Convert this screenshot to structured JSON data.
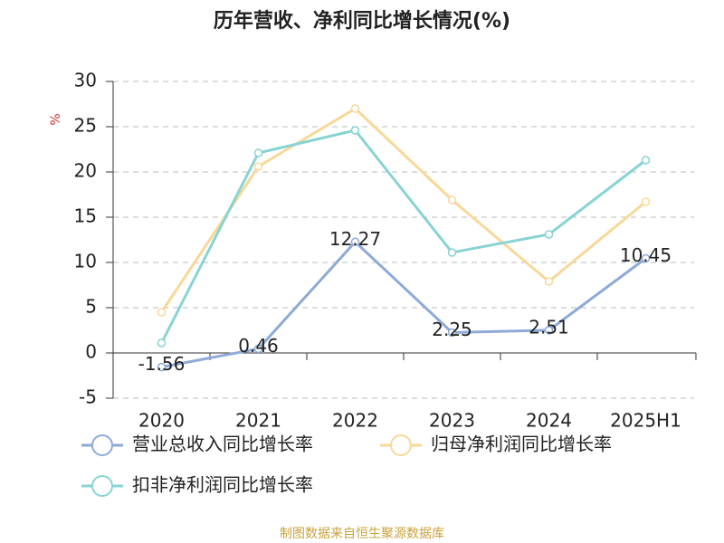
{
  "chart_data": {
    "type": "line",
    "title": "历年营收、净利同比增长情况(%)",
    "y_label": "%",
    "source": "制图数据来自恒生聚源数据库",
    "categories": [
      "2020",
      "2021",
      "2022",
      "2023",
      "2024",
      "2025H1"
    ],
    "series": [
      {
        "name": "营业总收入同比增长率",
        "color": "#8eaad6",
        "values": [
          -1.56,
          0.46,
          12.27,
          2.25,
          2.51,
          10.45
        ],
        "labels": true
      },
      {
        "name": "归母净利润同比增长率",
        "color": "#f8d898",
        "values": [
          4.5,
          20.6,
          27.0,
          16.9,
          7.9,
          16.7
        ]
      },
      {
        "name": "扣非净利润同比增长率",
        "color": "#88d3d3",
        "values": [
          1.1,
          22.1,
          24.6,
          11.1,
          13.1,
          21.3
        ]
      }
    ],
    "ylim": [
      -5,
      30
    ],
    "yticks": [
      -5,
      0,
      5,
      10,
      15,
      20,
      25,
      30
    ],
    "grid": true
  }
}
